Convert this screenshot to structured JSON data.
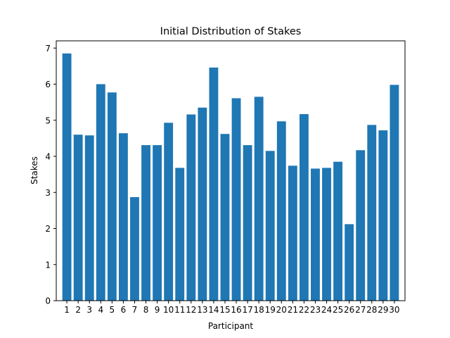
{
  "chart_data": {
    "type": "bar",
    "title": "Initial Distribution of Stakes",
    "xlabel": "Participant",
    "ylabel": "Stakes",
    "categories": [
      "1",
      "2",
      "3",
      "4",
      "5",
      "6",
      "7",
      "8",
      "9",
      "10",
      "11",
      "12",
      "13",
      "14",
      "15",
      "16",
      "17",
      "18",
      "19",
      "20",
      "21",
      "22",
      "23",
      "24",
      "25",
      "26",
      "27",
      "28",
      "29",
      "30"
    ],
    "values": [
      6.85,
      4.6,
      4.58,
      6.0,
      5.77,
      4.64,
      2.87,
      4.31,
      4.31,
      4.93,
      3.68,
      5.16,
      5.35,
      6.46,
      4.62,
      5.61,
      4.31,
      5.65,
      4.15,
      4.97,
      3.74,
      5.17,
      3.66,
      3.68,
      3.85,
      2.12,
      4.17,
      4.87,
      4.72,
      5.98
    ],
    "ylim": [
      0,
      7.2
    ],
    "yticks": [
      "0",
      "1",
      "2",
      "3",
      "4",
      "5",
      "6",
      "7"
    ],
    "bar_color": "#1f77b4",
    "grid": false,
    "legend": "none"
  }
}
